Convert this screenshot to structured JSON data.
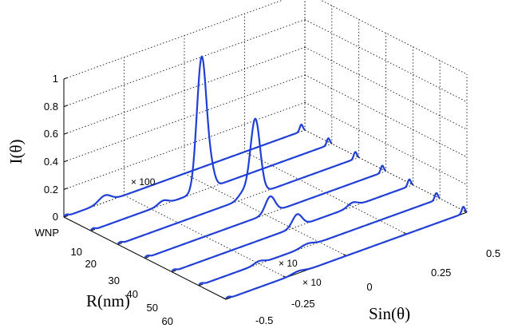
{
  "chart_data": {
    "type": "line",
    "subtype": "3d-waterfall",
    "title": "",
    "xlabel": "Sin(θ)",
    "ylabel": "R(nm)",
    "zlabel": "I(θ)",
    "xlim": [
      -0.5,
      0.5
    ],
    "ylim": [
      0,
      60
    ],
    "zlim": [
      0,
      1
    ],
    "x_ticks": [
      "-0.5",
      "-0.25",
      "0",
      "0.25",
      "0.5"
    ],
    "y_tick_labels": [
      "WNP",
      "10",
      "20",
      "30",
      "40",
      "50",
      "60"
    ],
    "z_ticks": [
      "0",
      "0.2",
      "0.4",
      "0.6",
      "0.8",
      "1"
    ],
    "grid": true,
    "color": "#1f3fd6",
    "series": [
      {
        "r": 0,
        "peaks": [
          {
            "x": -0.33,
            "amp": 0.05,
            "w": 0.025
          }
        ]
      },
      {
        "r": 10,
        "peaks": [
          {
            "x": -0.2,
            "amp": 0.03,
            "w": 0.02
          },
          {
            "x": -0.04,
            "amp": 0.97,
            "w": 0.02
          },
          {
            "x": 0.0,
            "amp": 0.1,
            "w": 0.015
          }
        ]
      },
      {
        "r": 20,
        "peaks": [
          {
            "x": 0.02,
            "amp": 0.05,
            "w": 0.02
          },
          {
            "x": 0.07,
            "amp": 0.55,
            "w": 0.02
          }
        ]
      },
      {
        "r": 30,
        "peaks": [
          {
            "x": 0.02,
            "amp": 0.12,
            "w": 0.02
          }
        ]
      },
      {
        "r": 40,
        "peaks": [
          {
            "x": 0.02,
            "amp": 0.09,
            "w": 0.02
          },
          {
            "x": 0.25,
            "amp": 0.03,
            "w": 0.02
          }
        ]
      },
      {
        "r": 50,
        "peaks": [
          {
            "x": -0.25,
            "amp": 0.02,
            "w": 0.02
          },
          {
            "x": -0.05,
            "amp": 0.02,
            "w": 0.025
          }
        ]
      },
      {
        "r": 60,
        "peaks": [
          {
            "x": -0.2,
            "amp": 0.015,
            "w": 0.025
          }
        ]
      }
    ],
    "annotations": [
      "× 100",
      "× 10",
      "× 10"
    ]
  }
}
